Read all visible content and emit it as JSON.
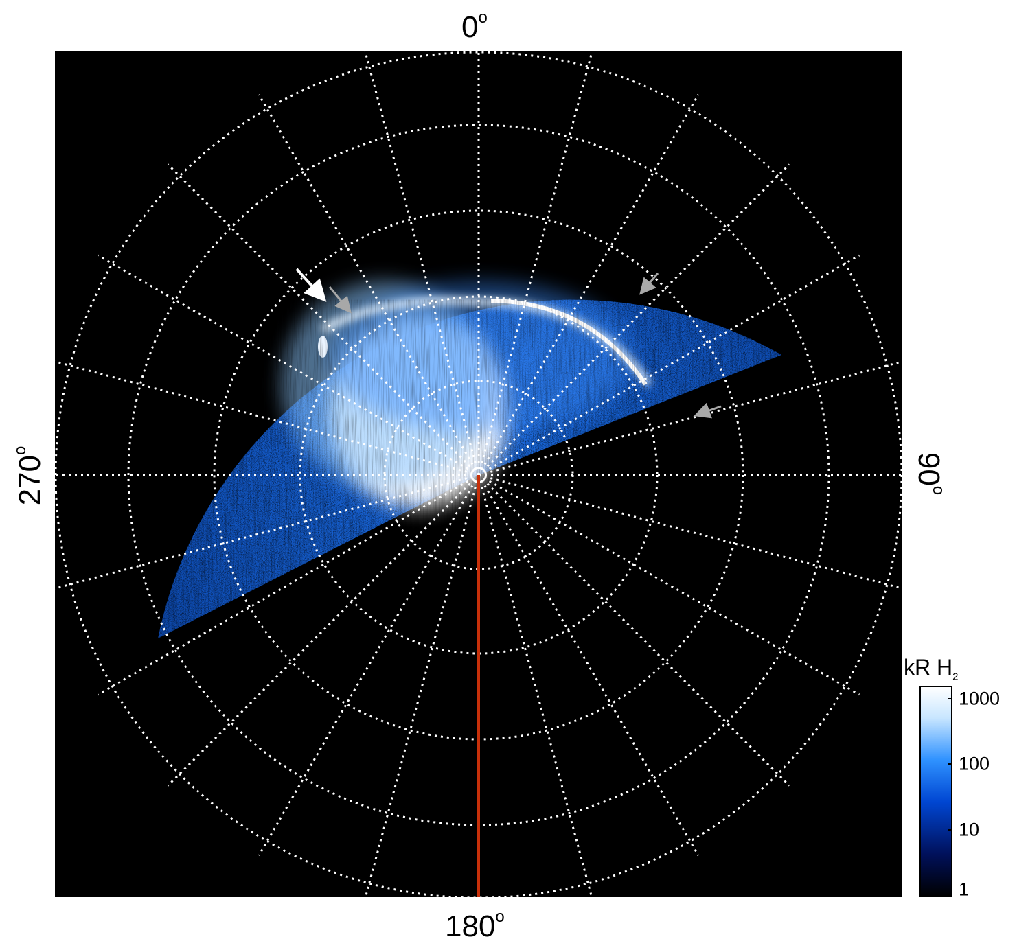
{
  "figure": {
    "angle_labels": {
      "top": "0",
      "right": "90",
      "bottom": "180",
      "left": "270",
      "degree_symbol": "o"
    },
    "colorbar": {
      "title": "kR H",
      "title_subscript": "2",
      "ticks": [
        "1000",
        "100",
        "10",
        "1"
      ],
      "colors": [
        "#000000",
        "#00105a",
        "#0046d2",
        "#2f92ff",
        "#c8e6ff",
        "#ffffff"
      ]
    },
    "colors": {
      "background": "#000000",
      "grid": "#ffffff",
      "meridian": "#c8300a",
      "arrow_white": "#ffffff",
      "arrow_gray": "#a8a8a8"
    },
    "arrows": [
      "white-arrow",
      "gray-arrow",
      "gray-arrow",
      "gray-arrow"
    ]
  }
}
